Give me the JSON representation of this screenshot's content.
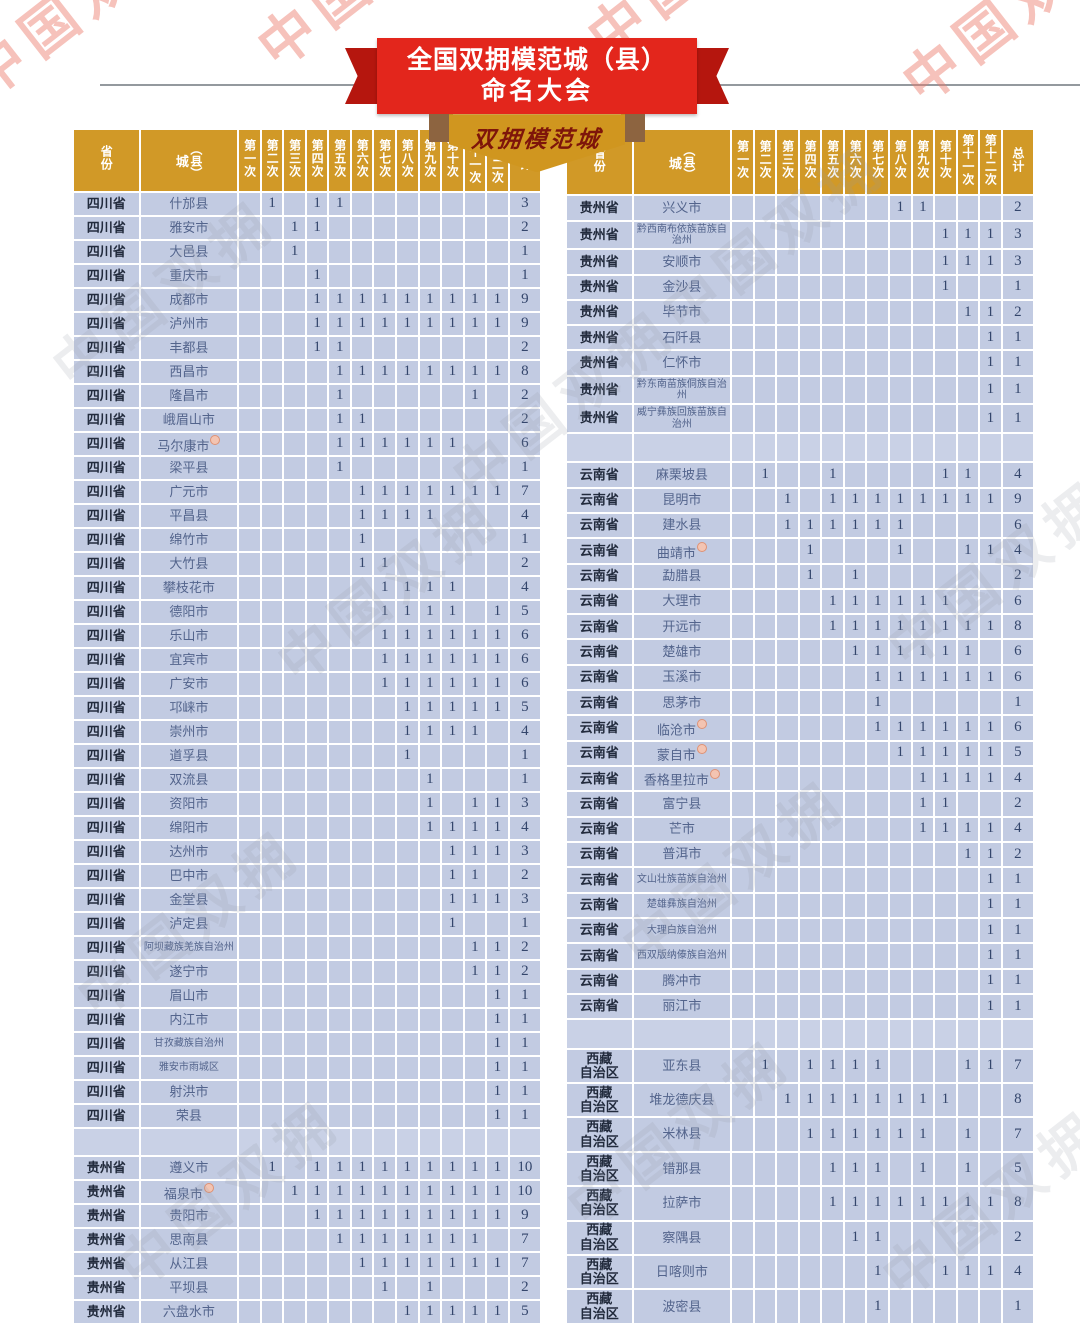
{
  "banner": {
    "line1": "全国双拥模范城（县）",
    "line2": "命名大会",
    "sub": "双拥模范城"
  },
  "watermark": {
    "text": "中国双拥"
  },
  "columns": [
    "省份",
    "城（县）",
    "第一次",
    "第二次",
    "第三次",
    "第四次",
    "第五次",
    "第六次",
    "第七次",
    "第八次",
    "第九次",
    "第十次",
    "第十一次",
    "第十二次",
    "总计"
  ],
  "colors": {
    "header_gold": "#d19927",
    "cell_blue": "#c2cbe2",
    "ribbon_red": "#e3261c",
    "ribbon_fold_dark": "#b5160e",
    "shield_gold": "#d0961f",
    "shield_text": "#7e150a",
    "province_text": "#222b3d",
    "city_text": "#53648c",
    "digit_text": "#34466c",
    "watermark_pink": "#eb7869",
    "watermark_gray": "#969ba5"
  },
  "tables": {
    "left": {
      "rows": [
        {
          "p": "四川省",
          "c": "什邡县",
          "n": [
            2,
            4,
            5
          ],
          "t": 3
        },
        {
          "p": "四川省",
          "c": "雅安市",
          "n": [
            3,
            4
          ],
          "t": 2
        },
        {
          "p": "四川省",
          "c": "大邑县",
          "n": [
            3
          ],
          "t": 1
        },
        {
          "p": "四川省",
          "c": "重庆市",
          "n": [
            4
          ],
          "t": 1
        },
        {
          "p": "四川省",
          "c": "成都市",
          "n": [
            4,
            5,
            6,
            7,
            8,
            9,
            10,
            11,
            12
          ],
          "t": 9
        },
        {
          "p": "四川省",
          "c": "泸州市",
          "n": [
            4,
            5,
            6,
            7,
            8,
            9,
            10,
            11,
            12
          ],
          "t": 9
        },
        {
          "p": "四川省",
          "c": "丰都县",
          "n": [
            4,
            5
          ],
          "t": 2
        },
        {
          "p": "四川省",
          "c": "西昌市",
          "n": [
            5,
            6,
            7,
            8,
            9,
            10,
            11,
            12
          ],
          "t": 8
        },
        {
          "p": "四川省",
          "c": "隆昌市",
          "n": [
            5,
            11
          ],
          "t": 2
        },
        {
          "p": "四川省",
          "c": "峨眉山市",
          "n": [
            5,
            6
          ],
          "t": 2
        },
        {
          "p": "四川省",
          "c": "马尔康市",
          "sup": true,
          "n": [
            5,
            6,
            7,
            8,
            9,
            10
          ],
          "t": 6
        },
        {
          "p": "四川省",
          "c": "梁平县",
          "n": [
            5
          ],
          "t": 1
        },
        {
          "p": "四川省",
          "c": "广元市",
          "n": [
            6,
            7,
            8,
            9,
            10,
            11,
            12
          ],
          "t": 7
        },
        {
          "p": "四川省",
          "c": "平昌县",
          "n": [
            6,
            7,
            8,
            9
          ],
          "t": 4
        },
        {
          "p": "四川省",
          "c": "绵竹市",
          "n": [
            6
          ],
          "t": 1
        },
        {
          "p": "四川省",
          "c": "大竹县",
          "n": [
            6,
            7
          ],
          "t": 2
        },
        {
          "p": "四川省",
          "c": "攀枝花市",
          "n": [
            7,
            8,
            9,
            10
          ],
          "t": 4
        },
        {
          "p": "四川省",
          "c": "德阳市",
          "n": [
            7,
            8,
            9,
            10,
            12
          ],
          "t": 5
        },
        {
          "p": "四川省",
          "c": "乐山市",
          "n": [
            7,
            8,
            9,
            10,
            11,
            12
          ],
          "t": 6
        },
        {
          "p": "四川省",
          "c": "宜宾市",
          "n": [
            7,
            8,
            9,
            10,
            11,
            12
          ],
          "t": 6
        },
        {
          "p": "四川省",
          "c": "广安市",
          "n": [
            7,
            8,
            9,
            10,
            11,
            12
          ],
          "t": 6
        },
        {
          "p": "四川省",
          "c": "邛崃市",
          "n": [
            8,
            9,
            10,
            11,
            12
          ],
          "t": 5
        },
        {
          "p": "四川省",
          "c": "崇州市",
          "n": [
            8,
            9,
            10,
            11
          ],
          "t": 4
        },
        {
          "p": "四川省",
          "c": "道孚县",
          "n": [
            8
          ],
          "t": 1
        },
        {
          "p": "四川省",
          "c": "双流县",
          "n": [
            9
          ],
          "t": 1
        },
        {
          "p": "四川省",
          "c": "资阳市",
          "n": [
            9,
            11,
            12
          ],
          "t": 3
        },
        {
          "p": "四川省",
          "c": "绵阳市",
          "n": [
            9,
            10,
            11,
            12
          ],
          "t": 4
        },
        {
          "p": "四川省",
          "c": "达州市",
          "n": [
            10,
            11,
            12
          ],
          "t": 3
        },
        {
          "p": "四川省",
          "c": "巴中市",
          "n": [
            10,
            11
          ],
          "t": 2
        },
        {
          "p": "四川省",
          "c": "金堂县",
          "n": [
            10,
            11,
            12
          ],
          "t": 3
        },
        {
          "p": "四川省",
          "c": "泸定县",
          "n": [
            10
          ],
          "t": 1
        },
        {
          "p": "四川省",
          "c": "阿坝藏族羌族自治州",
          "n": [
            11,
            12
          ],
          "t": 2
        },
        {
          "p": "四川省",
          "c": "遂宁市",
          "n": [
            11,
            12
          ],
          "t": 2
        },
        {
          "p": "四川省",
          "c": "眉山市",
          "n": [
            12
          ],
          "t": 1
        },
        {
          "p": "四川省",
          "c": "内江市",
          "n": [
            12
          ],
          "t": 1
        },
        {
          "p": "四川省",
          "c": "甘孜藏族自治州",
          "n": [
            12
          ],
          "t": 1
        },
        {
          "p": "四川省",
          "c": "雅安市雨城区",
          "n": [
            12
          ],
          "t": 1
        },
        {
          "p": "四川省",
          "c": "射洪市",
          "n": [
            12
          ],
          "t": 1
        },
        {
          "p": "四川省",
          "c": "荣县",
          "n": [
            12
          ],
          "t": 1
        },
        {
          "sep": true
        },
        {
          "p": "贵州省",
          "c": "遵义市",
          "n": [
            2,
            4,
            5,
            6,
            7,
            8,
            9,
            10,
            11,
            12
          ],
          "t": 10
        },
        {
          "p": "贵州省",
          "c": "福泉市",
          "sup": true,
          "n": [
            3,
            4,
            5,
            6,
            7,
            8,
            9,
            10,
            11,
            12
          ],
          "t": 10
        },
        {
          "p": "贵州省",
          "c": "贵阳市",
          "n": [
            4,
            5,
            6,
            7,
            8,
            9,
            10,
            11,
            12
          ],
          "t": 9
        },
        {
          "p": "贵州省",
          "c": "思南县",
          "n": [
            5,
            6,
            7,
            8,
            9,
            10,
            11
          ],
          "t": 7
        },
        {
          "p": "贵州省",
          "c": "从江县",
          "n": [
            6,
            7,
            8,
            9,
            10,
            11,
            12
          ],
          "t": 7
        },
        {
          "p": "贵州省",
          "c": "平坝县",
          "n": [
            7,
            9
          ],
          "t": 2
        },
        {
          "p": "贵州省",
          "c": "六盘水市",
          "n": [
            8,
            9,
            10,
            11,
            12
          ],
          "t": 5
        }
      ]
    },
    "right": {
      "rows": [
        {
          "p": "贵州省",
          "c": "兴义市",
          "n": [
            8,
            9
          ],
          "t": 2
        },
        {
          "p": "贵州省",
          "c": "黔西南布依族苗族自治州",
          "n": [
            10,
            11,
            12
          ],
          "t": 3
        },
        {
          "p": "贵州省",
          "c": "安顺市",
          "n": [
            10,
            11,
            12
          ],
          "t": 3
        },
        {
          "p": "贵州省",
          "c": "金沙县",
          "n": [
            10
          ],
          "t": 1
        },
        {
          "p": "贵州省",
          "c": "毕节市",
          "n": [
            11,
            12
          ],
          "t": 2
        },
        {
          "p": "贵州省",
          "c": "石阡县",
          "n": [
            12
          ],
          "t": 1
        },
        {
          "p": "贵州省",
          "c": "仁怀市",
          "n": [
            12
          ],
          "t": 1
        },
        {
          "p": "贵州省",
          "c": "黔东南苗族侗族自治州",
          "n": [
            12
          ],
          "t": 1
        },
        {
          "p": "贵州省",
          "c": "威宁彝族回族苗族自治州",
          "n": [
            12
          ],
          "t": 1
        },
        {
          "sep": true
        },
        {
          "p": "云南省",
          "c": "麻栗坡县",
          "n": [
            2,
            5,
            10,
            11
          ],
          "t": 4
        },
        {
          "p": "云南省",
          "c": "昆明市",
          "n": [
            3,
            5,
            6,
            7,
            8,
            9,
            10,
            11,
            12
          ],
          "t": 9
        },
        {
          "p": "云南省",
          "c": "建水县",
          "n": [
            3,
            4,
            5,
            6,
            7,
            8
          ],
          "t": 6
        },
        {
          "p": "云南省",
          "c": "曲靖市",
          "sup": true,
          "n": [
            4,
            8,
            11,
            12
          ],
          "t": 4
        },
        {
          "p": "云南省",
          "c": "勐腊县",
          "n": [
            4,
            6
          ],
          "t": 2
        },
        {
          "p": "云南省",
          "c": "大理市",
          "n": [
            5,
            6,
            7,
            8,
            9,
            10
          ],
          "t": 6
        },
        {
          "p": "云南省",
          "c": "开远市",
          "n": [
            5,
            6,
            7,
            8,
            9,
            10,
            11,
            12
          ],
          "t": 8
        },
        {
          "p": "云南省",
          "c": "楚雄市",
          "n": [
            6,
            7,
            8,
            9,
            10,
            11
          ],
          "t": 6
        },
        {
          "p": "云南省",
          "c": "玉溪市",
          "n": [
            7,
            8,
            9,
            10,
            11,
            12
          ],
          "t": 6
        },
        {
          "p": "云南省",
          "c": "思茅市",
          "n": [
            7
          ],
          "t": 1
        },
        {
          "p": "云南省",
          "c": "临沧市",
          "sup": true,
          "n": [
            7,
            8,
            9,
            10,
            11,
            12
          ],
          "t": 6
        },
        {
          "p": "云南省",
          "c": "蒙自市",
          "sup": true,
          "n": [
            8,
            9,
            10,
            11,
            12
          ],
          "t": 5
        },
        {
          "p": "云南省",
          "c": "香格里拉市",
          "sup": true,
          "n": [
            9,
            10,
            11,
            12
          ],
          "t": 4
        },
        {
          "p": "云南省",
          "c": "富宁县",
          "n": [
            9,
            10
          ],
          "t": 2
        },
        {
          "p": "云南省",
          "c": "芒市",
          "n": [
            9,
            10,
            11,
            12
          ],
          "t": 4
        },
        {
          "p": "云南省",
          "c": "普洱市",
          "n": [
            11,
            12
          ],
          "t": 2
        },
        {
          "p": "云南省",
          "c": "文山壮族苗族自治州",
          "n": [
            12
          ],
          "t": 1
        },
        {
          "p": "云南省",
          "c": "楚雄彝族自治州",
          "n": [
            12
          ],
          "t": 1
        },
        {
          "p": "云南省",
          "c": "大理白族自治州",
          "n": [
            12
          ],
          "t": 1
        },
        {
          "p": "云南省",
          "c": "西双版纳傣族自治州",
          "n": [
            12
          ],
          "t": 1
        },
        {
          "p": "云南省",
          "c": "腾冲市",
          "n": [
            12
          ],
          "t": 1
        },
        {
          "p": "云南省",
          "c": "丽江市",
          "n": [
            12
          ],
          "t": 1
        },
        {
          "sep": true
        },
        {
          "p": "西藏自治区",
          "c": "亚东县",
          "n": [
            2,
            4,
            5,
            6,
            7,
            11,
            12
          ],
          "t": 7
        },
        {
          "p": "西藏自治区",
          "c": "堆龙德庆县",
          "n": [
            3,
            4,
            5,
            6,
            7,
            8,
            9,
            10
          ],
          "t": 8
        },
        {
          "p": "西藏自治区",
          "c": "米林县",
          "n": [
            4,
            5,
            6,
            7,
            8,
            9,
            11
          ],
          "t": 7
        },
        {
          "p": "西藏自治区",
          "c": "错那县",
          "n": [
            5,
            6,
            7,
            9,
            11
          ],
          "t": 5
        },
        {
          "p": "西藏自治区",
          "c": "拉萨市",
          "n": [
            5,
            6,
            7,
            8,
            9,
            10,
            11,
            12
          ],
          "t": 8
        },
        {
          "p": "西藏自治区",
          "c": "察隅县",
          "n": [
            6,
            7
          ],
          "t": 2
        },
        {
          "p": "西藏自治区",
          "c": "日喀则市",
          "n": [
            7,
            10,
            11,
            12
          ],
          "t": 4
        },
        {
          "p": "西藏自治区",
          "c": "波密县",
          "n": [
            7
          ],
          "t": 1
        }
      ]
    }
  }
}
